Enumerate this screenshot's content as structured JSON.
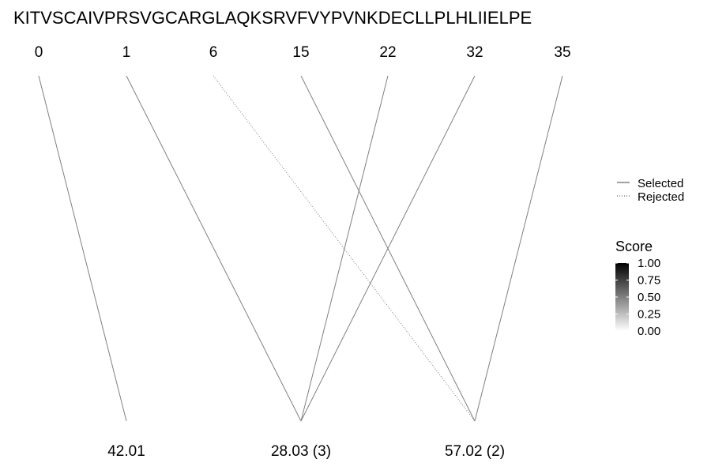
{
  "chart_data": {
    "type": "diagram",
    "sequence": "KITVSCAIVPRSVGCARGLAQKSRVFVYPVNKDECLLPLHLIIELPE",
    "top_positions": [
      "0",
      "1",
      "6",
      "15",
      "22",
      "32",
      "35"
    ],
    "bottom_labels": [
      "42.01",
      "28.03 (3)",
      "57.02 (2)"
    ],
    "links": [
      {
        "from": 0,
        "to": 0,
        "status": "selected",
        "score": 0.5
      },
      {
        "from": 1,
        "to": 1,
        "status": "selected",
        "score": 0.5
      },
      {
        "from": 4,
        "to": 1,
        "status": "selected",
        "score": 0.5
      },
      {
        "from": 5,
        "to": 1,
        "status": "selected",
        "score": 0.5
      },
      {
        "from": 3,
        "to": 2,
        "status": "selected",
        "score": 0.5
      },
      {
        "from": 6,
        "to": 2,
        "status": "selected",
        "score": 0.5
      },
      {
        "from": 2,
        "to": 2,
        "status": "rejected",
        "score": 0.5
      }
    ],
    "legend": {
      "linetype": [
        "Selected",
        "Rejected"
      ],
      "score_title": "Score",
      "score_ticks": [
        "1.00",
        "0.75",
        "0.50",
        "0.25",
        "0.00"
      ],
      "score_range": [
        0,
        1
      ],
      "score_colors": [
        "#000000",
        "#ffffff"
      ]
    }
  }
}
